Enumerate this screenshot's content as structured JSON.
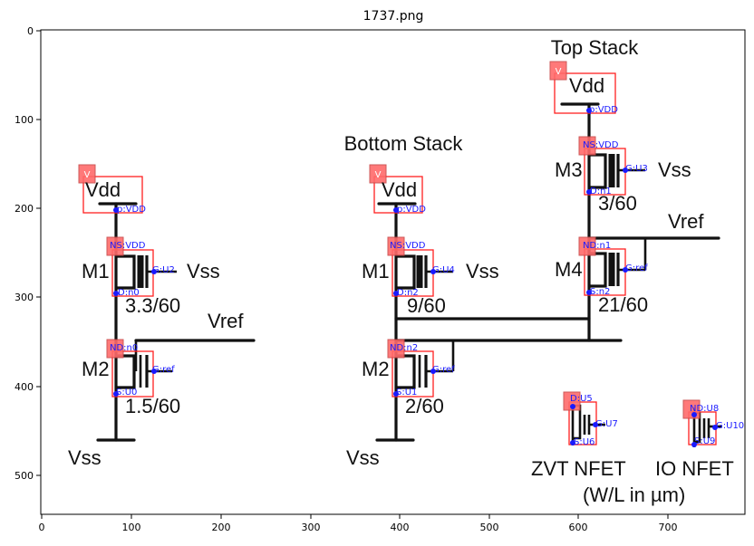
{
  "figure": {
    "title": "1737.png",
    "x_ticks": [
      "0",
      "100",
      "200",
      "300",
      "400",
      "500",
      "600",
      "700"
    ],
    "y_ticks": [
      "0",
      "100",
      "200",
      "300",
      "400",
      "500"
    ]
  },
  "labels": {
    "top_stack": "Top Stack",
    "bottom_stack": "Bottom Stack",
    "vdd": "Vdd",
    "vss": "Vss",
    "vref": "Vref",
    "m1": "M1",
    "m2": "M2",
    "m3": "M3",
    "m4": "M4",
    "size_left_m1": "3.3/60",
    "size_left_m2": "1.5/60",
    "size_mid_m1": "9/60",
    "size_mid_m2": "2/60",
    "size_m3": "3/60",
    "size_m4": "21/60",
    "zvt": "ZVT NFET",
    "io": "IO NFET",
    "units": "(W/L in µm)",
    "v_tag": "V"
  },
  "annotations": {
    "a_vdd_left": "p:VDD",
    "a_ns_left": "NS:VDD",
    "a_g_u2": "G:U2",
    "a_d_n0": "D:n0",
    "a_nd_n0": "ND:n0",
    "a_g_ref_left": "G:ref",
    "a_s_u0": "S:U0",
    "a_vdd_mid": "p:VDD",
    "a_ns_mid": "NS:VDD",
    "a_g_u4": "G:U4",
    "a_d_n2": "D:n2",
    "a_nd_n2": "ND:n2",
    "a_g_ref_mid": "G:ref",
    "a_s_u1": "S:U1",
    "a_vdd_top": "p:VDD",
    "a_ns_top": "NS:VDD",
    "a_g_u3": "G:U3",
    "a_d_n1": "D:n1",
    "a_nd_n1": "ND:n1",
    "a_g_ref_top": "G:ref",
    "a_s_n2": "S:n2",
    "a_d_u5": "D:U5",
    "a_g_u7": "G:U7",
    "a_s_u6": "S:U6",
    "a_nd_u8": "ND:U8",
    "a_g_u10": "G:U10",
    "a_s_u9": "S:U9"
  }
}
